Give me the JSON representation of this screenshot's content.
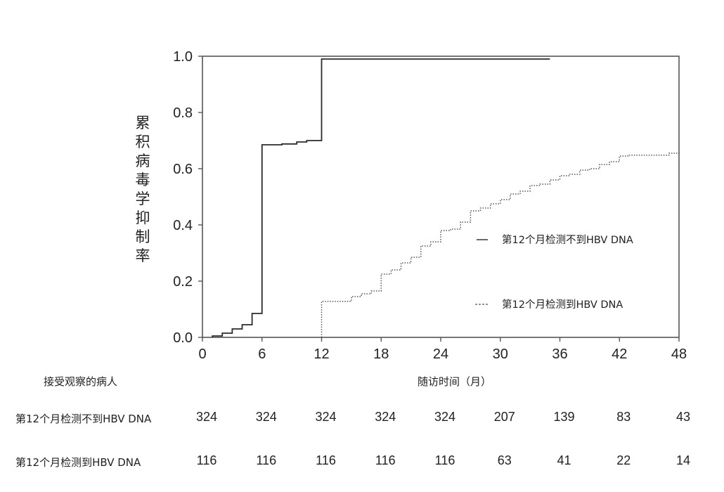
{
  "chart_data": {
    "type": "line",
    "step": true,
    "title": "",
    "xlabel": "随访时间（月）",
    "ylabel": "累积病毒学抑制率",
    "xlim": [
      0,
      48
    ],
    "ylim": [
      0,
      1.0
    ],
    "x_ticks": [
      0,
      6,
      12,
      18,
      24,
      30,
      36,
      42,
      48
    ],
    "y_ticks": [
      "0.0",
      "0.2",
      "0.4",
      "0.6",
      "0.8",
      "1.0"
    ],
    "grid": false,
    "legend_position": "right-center",
    "series": [
      {
        "name": "第12个月检测不到HBV DNA",
        "legend_marker": "—",
        "style": "solid",
        "color": "#2b2b2b",
        "x": [
          1,
          2,
          3,
          4,
          5,
          6,
          8,
          9.5,
          10.5,
          12,
          35
        ],
        "y": [
          0.005,
          0.015,
          0.03,
          0.045,
          0.085,
          0.685,
          0.688,
          0.695,
          0.7,
          0.99,
          0.99
        ]
      },
      {
        "name": "第12个月检测到HBV DNA",
        "legend_marker": "---",
        "style": "dotted",
        "color": "#555555",
        "x": [
          12,
          15,
          16,
          17,
          18,
          19,
          20,
          21,
          22,
          23,
          24,
          25,
          26,
          27,
          28,
          29,
          30,
          31,
          32,
          33,
          34,
          35,
          36,
          37,
          38,
          39,
          40,
          41,
          42,
          43,
          47,
          48
        ],
        "y": [
          0.128,
          0.145,
          0.155,
          0.165,
          0.225,
          0.24,
          0.265,
          0.285,
          0.325,
          0.34,
          0.38,
          0.385,
          0.41,
          0.45,
          0.46,
          0.475,
          0.49,
          0.51,
          0.52,
          0.54,
          0.545,
          0.56,
          0.575,
          0.58,
          0.595,
          0.6,
          0.615,
          0.625,
          0.645,
          0.648,
          0.655,
          0.66
        ]
      }
    ]
  },
  "risk_table": {
    "header": "接受观察的病人",
    "times": [
      0,
      6,
      12,
      18,
      24,
      30,
      36,
      42,
      48
    ],
    "rows": [
      {
        "label": "第12个月检测不到HBV DNA",
        "values": [
          "324",
          "324",
          "324",
          "324",
          "324",
          "207",
          "139",
          "83",
          "43"
        ]
      },
      {
        "label": "第12个月检测到HBV DNA",
        "values": [
          "116",
          "116",
          "116",
          "116",
          "116",
          "63",
          "41",
          "22",
          "14"
        ]
      }
    ]
  }
}
